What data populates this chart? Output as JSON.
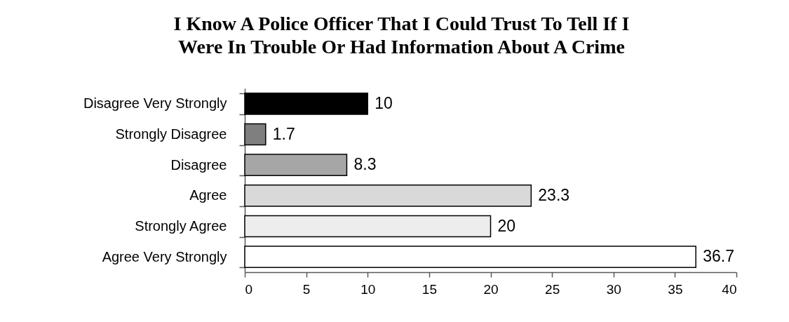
{
  "chart_data": {
    "type": "bar",
    "orientation": "horizontal",
    "title": "I Know A Police Officer That I Could Trust To Tell If I Were In Trouble Or Had Information About A Crime",
    "categories": [
      "Disagree Very Strongly",
      "Strongly Disagree",
      "Disagree",
      "Agree",
      "Strongly Agree",
      "Agree Very Strongly"
    ],
    "values": [
      10,
      1.7,
      8.3,
      23.3,
      20,
      36.7
    ],
    "colors": [
      "#000000",
      "#7f7f7f",
      "#a6a6a6",
      "#d9d9d9",
      "#ededed",
      "#ffffff"
    ],
    "xlim": [
      0,
      40
    ],
    "xticks": [
      0,
      5,
      10,
      15,
      20,
      25,
      30,
      35,
      40
    ],
    "data_labels": true
  }
}
